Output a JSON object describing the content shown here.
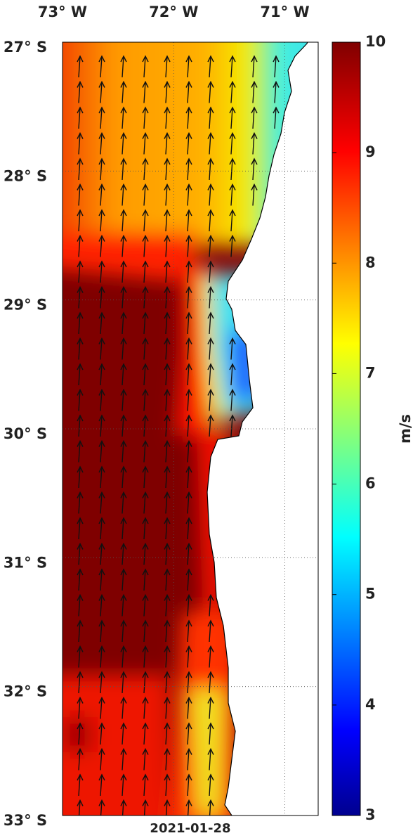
{
  "map": {
    "lon_ticks": [
      {
        "value": -73,
        "label": "73° W"
      },
      {
        "value": -72,
        "label": "72° W"
      },
      {
        "value": -71,
        "label": "71° W"
      }
    ],
    "lat_ticks": [
      {
        "value": -27,
        "label": "27° S"
      },
      {
        "value": -28,
        "label": "28° S"
      },
      {
        "value": -29,
        "label": "29° S"
      },
      {
        "value": -30,
        "label": "30° S"
      },
      {
        "value": -31,
        "label": "31° S"
      },
      {
        "value": -32,
        "label": "32° S"
      },
      {
        "value": -33,
        "label": "33° S"
      }
    ],
    "xlim": [
      -73,
      -70.7
    ],
    "ylim": [
      -33,
      -27
    ],
    "date": "2021-01-28"
  },
  "colorbar": {
    "label": "m/s",
    "lim": [
      3,
      10
    ],
    "ticks": [
      3,
      4,
      5,
      6,
      7,
      8,
      9,
      10
    ]
  }
}
